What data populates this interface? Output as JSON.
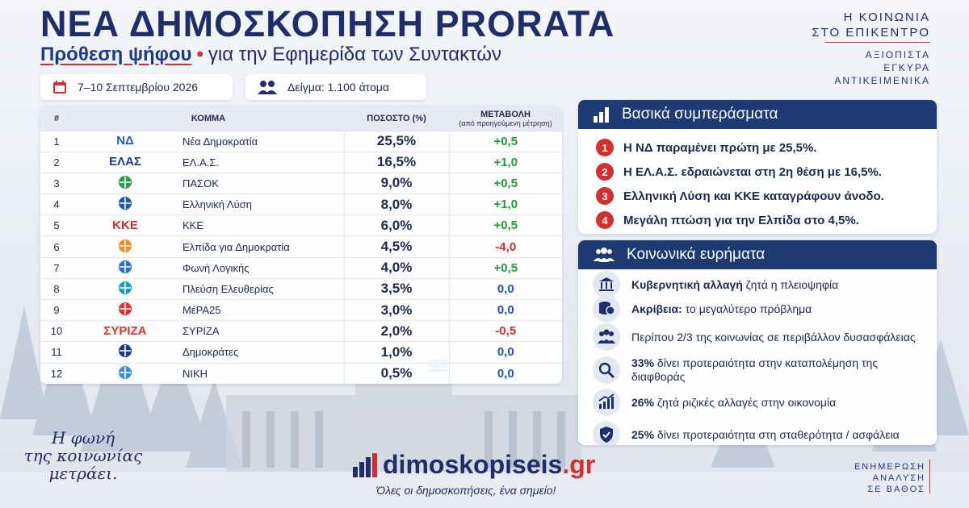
{
  "header": {
    "title": "ΝΕΑ ΔΗΜΟΣΚΟΠΗΣΗ PRORATA",
    "subtitle_accent": "Πρόθεση ψήφου",
    "subtitle_rest": "για την Εφημερίδα των Συντακτών",
    "tagline_line1": "Η ΚΟΙΝΩΝΙΑ",
    "tagline_line2": "ΣΤΟ ΕΠΙΚΕΝΤΡΟ",
    "values_line1": "ΑΞΙΟΠΙΣΤΑ",
    "values_line2": "ΕΓΚΥΡΑ",
    "values_line3": "ΑΝΤΙΚΕΙΜΕΝΙΚΑ"
  },
  "info": {
    "date": "7–10 Σεπτεμβρίου 2026",
    "sample": "Δείγμα: 1.100 άτομα"
  },
  "table": {
    "col_rank": "#",
    "col_party": "ΚΟΜΜΑ",
    "col_percent": "ΠΟΣΟΣΤΟ (%)",
    "col_change": "ΜΕΤΑΒΟΛΗ",
    "col_change_note": "(από προηγούμενη μέτρηση)"
  },
  "chart_data": {
    "type": "table",
    "columns": [
      "#",
      "ΚΟΜΜΑ",
      "ΠΟΣΟΣΤΟ (%)",
      "ΜΕΤΑΒΟΛΗ"
    ],
    "rows": [
      {
        "rank": "1",
        "logo": "ΝΔ",
        "party": "Νέα Δημοκρατία",
        "percent": "25,5%",
        "change": "+0,5",
        "sign": "pos",
        "color": "#1f5fbf"
      },
      {
        "rank": "2",
        "logo": "ΕΛΑΣ",
        "party": "ΕΛ.Α.Σ.",
        "percent": "16,5%",
        "change": "+1,0",
        "sign": "pos",
        "color": "#1e3a8a"
      },
      {
        "rank": "3",
        "logo": "",
        "party": "ΠΑΣΟΚ",
        "percent": "9,0%",
        "change": "+0,5",
        "sign": "pos",
        "color": "#2e9d48"
      },
      {
        "rank": "4",
        "logo": "",
        "party": "Ελληνική Λύση",
        "percent": "8,0%",
        "change": "+1,0",
        "sign": "pos",
        "color": "#1e5aa8"
      },
      {
        "rank": "5",
        "logo": "ΚΚΕ",
        "party": "ΚΚΕ",
        "percent": "6,0%",
        "change": "+0,5",
        "sign": "pos",
        "color": "#d32f2f"
      },
      {
        "rank": "6",
        "logo": "",
        "party": "Ελπίδα για Δημοκρατία",
        "percent": "4,5%",
        "change": "-4,0",
        "sign": "neg",
        "color": "#f28c28"
      },
      {
        "rank": "7",
        "logo": "",
        "party": "Φωνή Λογικής",
        "percent": "4,0%",
        "change": "+0,5",
        "sign": "pos",
        "color": "#2a6fd6"
      },
      {
        "rank": "8",
        "logo": "",
        "party": "Πλεύση Ελευθερίας",
        "percent": "3,5%",
        "change": "0,0",
        "sign": "zero",
        "color": "#1aa0b8"
      },
      {
        "rank": "9",
        "logo": "",
        "party": "ΜέΡΑ25",
        "percent": "3,0%",
        "change": "0,0",
        "sign": "zero",
        "color": "#e0312f"
      },
      {
        "rank": "10",
        "logo": "ΣΥΡΙΖΑ",
        "party": "ΣΥΡΙΖΑ",
        "percent": "2,0%",
        "change": "-0,5",
        "sign": "neg",
        "color": "#e0312f"
      },
      {
        "rank": "11",
        "logo": "",
        "party": "Δημοκράτες",
        "percent": "1,0%",
        "change": "0,0",
        "sign": "zero",
        "color": "#1e3a8a"
      },
      {
        "rank": "12",
        "logo": "",
        "party": "ΝΙΚΗ",
        "percent": "0,5%",
        "change": "0,0",
        "sign": "zero",
        "color": "#3c8fd6"
      }
    ]
  },
  "conclusions": {
    "title": "Βασικά συμπεράσματα",
    "items": [
      {
        "n": "1",
        "a": "Η ΝΔ παραμένει πρώτη με ",
        "b": "25,5%."
      },
      {
        "n": "2",
        "a": "Η ΕΛ.Α.Σ. εδραιώνεται στη 2η θέση με ",
        "b": "16,5%."
      },
      {
        "n": "3",
        "a": "Ελληνική Λύση και ΚΚΕ καταγράφουν άνοδο.",
        "b": ""
      },
      {
        "n": "4",
        "a": "Μεγάλη πτώση για την Ελπίδα στο ",
        "b": "4,5%."
      }
    ]
  },
  "findings": {
    "title": "Κοινωνικά ευρήματα",
    "items": [
      {
        "bold": "Κυβερνητική αλλαγή",
        "rest": " ζητά η πλειοψηφία",
        "icon": "government-building-icon"
      },
      {
        "bold": "Ακρίβεια:",
        "rest": " το μεγαλύτερο πρόβλημα",
        "icon": "coins-icon"
      },
      {
        "bold": "",
        "rest": "Περίπου 2/3 της κοινωνίας σε περιβάλλον δυσασφάλειας",
        "icon": "people-icon"
      },
      {
        "bold": "33%",
        "rest": " δίνει προτεραιότητα στην καταπολέμηση της διαφθοράς",
        "icon": "magnifier-icon"
      },
      {
        "bold": "26%",
        "rest": " ζητά ριζικές αλλαγές στην οικονομία",
        "icon": "growth-chart-icon"
      },
      {
        "bold": "25%",
        "rest": " δίνει προτεραιότητα στη σταθερότητα / ασφάλεια",
        "icon": "shield-icon"
      }
    ]
  },
  "footer": {
    "slogan_line1": "Η φωνή",
    "slogan_line2": "της κοινωνίας",
    "slogan_line3": "μετράει.",
    "brand_main": "dimoskopiseis",
    "brand_tld": ".gr",
    "brand_tagline": "Όλες οι δημοσκοπήσεις, ένα σημείο!",
    "right_line1": "ΕΝΗΜΕΡΩΣΗ",
    "right_line2": "ΑΝΑΛΥΣΗ",
    "right_line3": "ΣΕ ΒΑΘΟΣ"
  },
  "colors": {
    "navy": "#1e2d6b",
    "panel_header": "#1e3a73",
    "accent_red": "#d32f2f",
    "positive": "#1f9d36",
    "negative": "#d32f2f",
    "neutral": "#1f4fd6"
  }
}
